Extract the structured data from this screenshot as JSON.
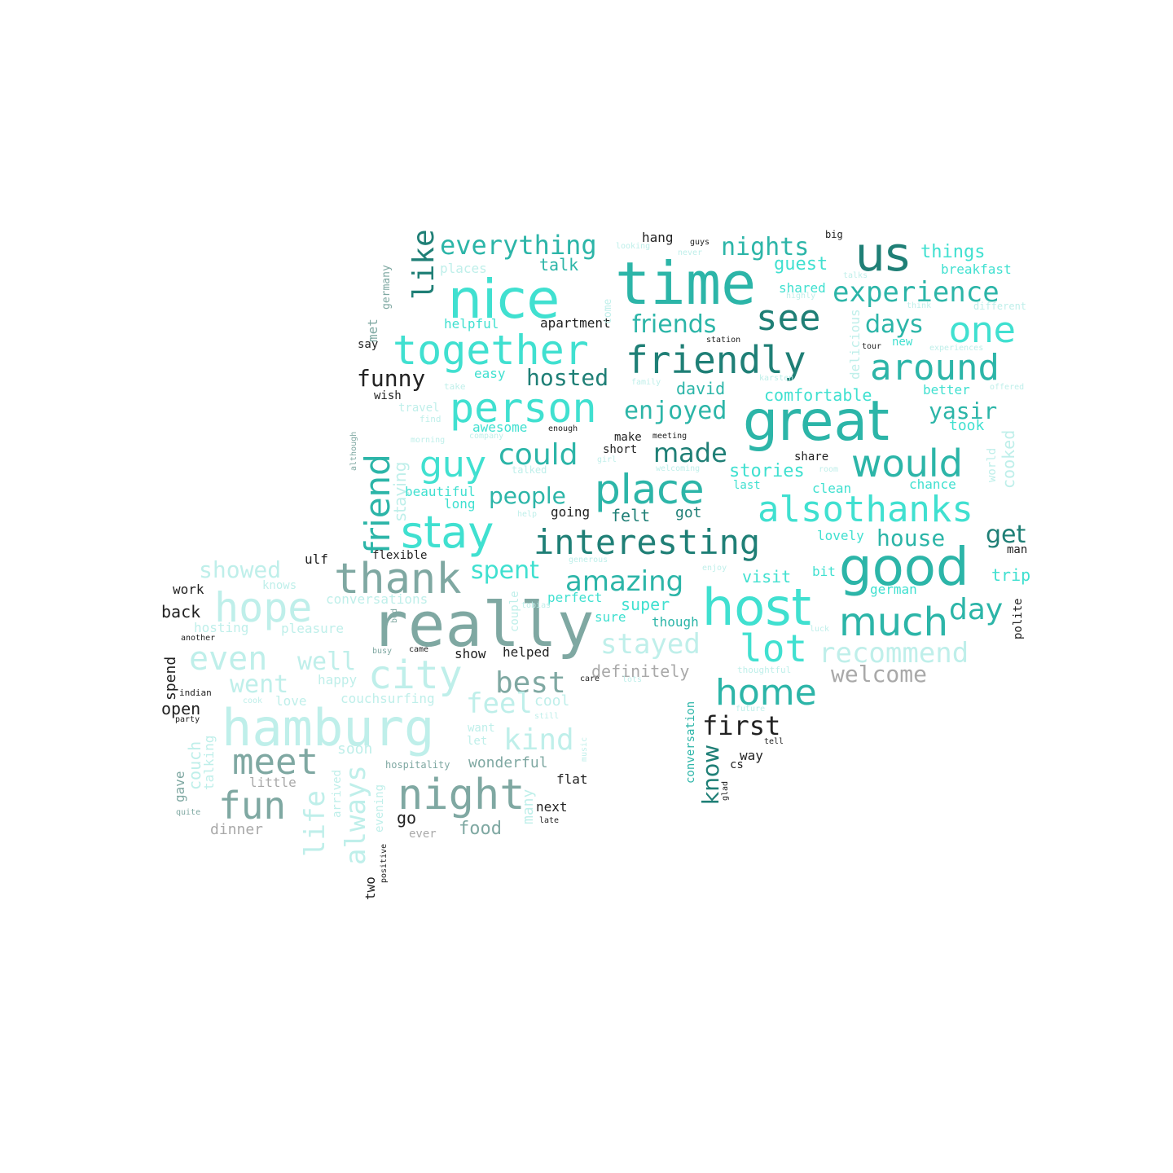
{
  "palette": {
    "teal_bright": "#40E0D0",
    "teal_mid": "#2CB5A8",
    "teal_dark": "#1F7F76",
    "sage": "#7FA8A2",
    "pale": "#BFEFEA",
    "gray": "#A9A9A9",
    "dark": "#222222"
  },
  "words": [
    "time",
    "really",
    "host",
    "great",
    "nice",
    "hamburg",
    "good",
    "together",
    "person",
    "friendly",
    "us",
    "place",
    "thank",
    "stay",
    "interesting",
    "hope",
    "night",
    "city",
    "lot",
    "around",
    "would",
    "fun",
    "meet",
    "home",
    "alsothanks",
    "much",
    "friend",
    "see",
    "one",
    "experience",
    "recommend",
    "even",
    "guy",
    "could",
    "everything",
    "enjoyed",
    "stayed",
    "nights",
    "amazing",
    "first",
    "day",
    "people",
    "friends",
    "hosted",
    "made",
    "kind",
    "like",
    "best",
    "days",
    "feel",
    "showed",
    "funny",
    "well",
    "went",
    "house",
    "welcome",
    "spent",
    "yasir",
    "get",
    "know",
    "stories",
    "life",
    "always",
    "definitely",
    "guest",
    "things",
    "super",
    "comfortable",
    "david",
    "felt",
    "got",
    "visit",
    "food",
    "wonderful",
    "trip",
    "breakfast",
    "talk",
    "places",
    "show",
    "helped",
    "staying",
    "conversations",
    "pleasure",
    "hosting",
    "apartment",
    "helpful",
    "easy",
    "beautiful",
    "long",
    "going",
    "couchsurfing",
    "dinner",
    "cooked",
    "took",
    "better",
    "clean",
    "chance",
    "lovely",
    "bit",
    "perfect",
    "sure",
    "though",
    "spend",
    "gave",
    "couch",
    "talking",
    "many",
    "little",
    "soon",
    "cool",
    "flat",
    "next",
    "ever",
    "go",
    "two",
    "open",
    "back",
    "work",
    "ulf",
    "flexible",
    "hang",
    "wish",
    "say",
    "met",
    "germany",
    "big",
    "short",
    "make",
    "share",
    "want",
    "let",
    "polite",
    "man",
    "german",
    "delicious",
    "conversation",
    "world",
    "come",
    "shared",
    "new",
    "last",
    "tour",
    "happy",
    "love",
    "knows",
    "couple",
    "evening",
    "arrived",
    "awesome",
    "take",
    "travel",
    "find",
    "family",
    "meeting",
    "station",
    "different",
    "think",
    "highly",
    "talks",
    "guys",
    "looking",
    "never",
    "experiences",
    "offered",
    "karsten",
    "enough",
    "company",
    "morning",
    "talked",
    "welcoming",
    "girl",
    "help",
    "enjoy",
    "generous",
    "tobias",
    "luck",
    "thoughtful",
    "future",
    "tell",
    "glad",
    "cs",
    "way",
    "care",
    "lots",
    "still",
    "music",
    "hospitality",
    "quite",
    "party",
    "cook",
    "indian",
    "another",
    "late",
    "busy",
    "came",
    "bed",
    "positive",
    "although",
    "room"
  ]
}
